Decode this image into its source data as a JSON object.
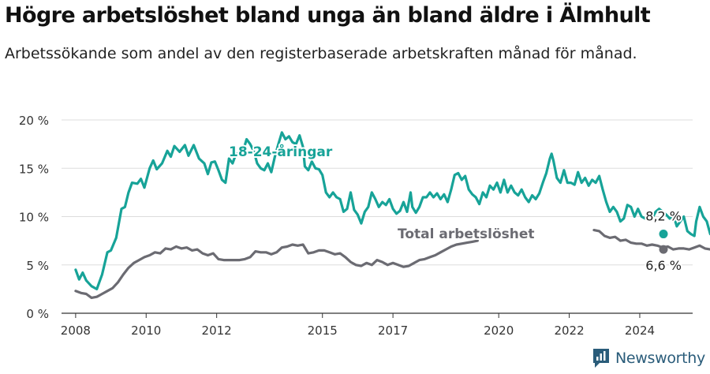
{
  "title": "Högre arbetslöshet bland unga än bland äldre i Älmhult",
  "subtitle": "Arbetssökande som andel av den registerbaserade arbetskraften månad för månad.",
  "brand": "Newsworthy",
  "colors": {
    "youth": "#17a398",
    "total": "#6b6b72",
    "grid": "#dddddd",
    "axis": "#333333"
  },
  "chart_data": {
    "type": "line",
    "ylabel": "",
    "xlabel": "",
    "ylim": [
      0,
      20
    ],
    "y_ticks": [
      0,
      5,
      10,
      15,
      20
    ],
    "y_tick_labels": [
      "0 %",
      "5 %",
      "10 %",
      "15 %",
      "20 %"
    ],
    "x_range": [
      2007.6,
      2025.5
    ],
    "x_ticks": [
      2008,
      2010,
      2012,
      2015,
      2017,
      2020,
      2022,
      2024
    ],
    "x_tick_labels": [
      "2008",
      "2010",
      "2012",
      "2015",
      "2017",
      "2020",
      "2022",
      "2024"
    ],
    "series": [
      {
        "name": "18-24-åringar",
        "label": "18-24-åringar",
        "end_label": "8,2 %",
        "points": [
          [
            2008.0,
            4.5
          ],
          [
            2008.1,
            3.5
          ],
          [
            2008.2,
            4.2
          ],
          [
            2008.3,
            3.4
          ],
          [
            2008.45,
            2.8
          ],
          [
            2008.6,
            2.5
          ],
          [
            2008.75,
            4.0
          ],
          [
            2008.9,
            6.3
          ],
          [
            2009.0,
            6.5
          ],
          [
            2009.15,
            7.8
          ],
          [
            2009.3,
            10.8
          ],
          [
            2009.4,
            11.0
          ],
          [
            2009.5,
            12.5
          ],
          [
            2009.6,
            13.5
          ],
          [
            2009.75,
            13.4
          ],
          [
            2009.85,
            13.9
          ],
          [
            2009.95,
            13.0
          ],
          [
            2010.1,
            15.0
          ],
          [
            2010.2,
            15.8
          ],
          [
            2010.3,
            14.9
          ],
          [
            2010.45,
            15.5
          ],
          [
            2010.6,
            16.8
          ],
          [
            2010.7,
            16.2
          ],
          [
            2010.8,
            17.3
          ],
          [
            2010.95,
            16.7
          ],
          [
            2011.1,
            17.4
          ],
          [
            2011.2,
            16.3
          ],
          [
            2011.35,
            17.4
          ],
          [
            2011.5,
            16.0
          ],
          [
            2011.65,
            15.5
          ],
          [
            2011.75,
            14.4
          ],
          [
            2011.85,
            15.6
          ],
          [
            2011.95,
            15.7
          ],
          [
            2012.05,
            14.8
          ],
          [
            2012.15,
            13.8
          ],
          [
            2012.25,
            13.5
          ],
          [
            2012.35,
            16.0
          ],
          [
            2012.45,
            15.5
          ],
          [
            2012.55,
            16.5
          ],
          [
            2012.65,
            16.5
          ],
          [
            2012.75,
            16.8
          ],
          [
            2012.85,
            18.0
          ],
          [
            2012.95,
            17.5
          ],
          [
            2013.05,
            16.8
          ],
          [
            2013.15,
            15.5
          ],
          [
            2013.25,
            15.0
          ],
          [
            2013.35,
            14.8
          ],
          [
            2013.45,
            15.5
          ],
          [
            2013.55,
            14.6
          ],
          [
            2013.65,
            16.2
          ],
          [
            2013.75,
            17.5
          ],
          [
            2013.85,
            18.7
          ],
          [
            2013.95,
            18.0
          ],
          [
            2014.05,
            18.3
          ],
          [
            2014.15,
            17.7
          ],
          [
            2014.25,
            17.5
          ],
          [
            2014.35,
            18.4
          ],
          [
            2014.45,
            17.2
          ],
          [
            2014.5,
            15.2
          ],
          [
            2014.6,
            14.8
          ],
          [
            2014.7,
            15.7
          ],
          [
            2014.8,
            15.0
          ],
          [
            2014.9,
            14.9
          ],
          [
            2015.0,
            14.3
          ],
          [
            2015.1,
            12.5
          ],
          [
            2015.2,
            12.0
          ],
          [
            2015.3,
            12.5
          ],
          [
            2015.4,
            12.0
          ],
          [
            2015.5,
            11.8
          ],
          [
            2015.6,
            10.5
          ],
          [
            2015.7,
            10.8
          ],
          [
            2015.8,
            12.5
          ],
          [
            2015.9,
            10.7
          ],
          [
            2016.0,
            10.2
          ],
          [
            2016.1,
            9.3
          ],
          [
            2016.2,
            10.5
          ],
          [
            2016.3,
            11.0
          ],
          [
            2016.4,
            12.5
          ],
          [
            2016.5,
            11.8
          ],
          [
            2016.6,
            11.0
          ],
          [
            2016.7,
            11.5
          ],
          [
            2016.8,
            11.2
          ],
          [
            2016.9,
            11.8
          ],
          [
            2017.0,
            10.8
          ],
          [
            2017.1,
            10.3
          ],
          [
            2017.2,
            10.6
          ],
          [
            2017.3,
            11.5
          ],
          [
            2017.4,
            10.5
          ],
          [
            2017.5,
            12.5
          ],
          [
            2017.55,
            11.0
          ],
          [
            2017.65,
            10.4
          ],
          [
            2017.75,
            11.0
          ],
          [
            2017.85,
            12.0
          ],
          [
            2017.95,
            12.0
          ],
          [
            2018.05,
            12.5
          ],
          [
            2018.15,
            12.0
          ],
          [
            2018.25,
            12.4
          ],
          [
            2018.35,
            11.8
          ],
          [
            2018.45,
            12.3
          ],
          [
            2018.55,
            11.5
          ],
          [
            2018.65,
            12.8
          ],
          [
            2018.75,
            14.3
          ],
          [
            2018.85,
            14.5
          ],
          [
            2018.95,
            13.8
          ],
          [
            2019.05,
            14.2
          ],
          [
            2019.15,
            12.8
          ],
          [
            2019.25,
            12.3
          ],
          [
            2019.35,
            12.0
          ],
          [
            2019.45,
            11.3
          ],
          [
            2019.55,
            12.5
          ],
          [
            2019.65,
            12.0
          ],
          [
            2019.75,
            13.2
          ],
          [
            2019.85,
            12.8
          ],
          [
            2019.95,
            13.5
          ],
          [
            2020.05,
            12.5
          ],
          [
            2020.15,
            13.8
          ],
          [
            2020.25,
            12.5
          ],
          [
            2020.35,
            13.2
          ],
          [
            2020.45,
            12.5
          ],
          [
            2020.55,
            12.2
          ],
          [
            2020.65,
            12.8
          ],
          [
            2020.75,
            12.0
          ],
          [
            2020.85,
            11.5
          ],
          [
            2020.95,
            12.2
          ],
          [
            2021.05,
            11.8
          ],
          [
            2021.15,
            12.4
          ],
          [
            2021.25,
            13.5
          ],
          [
            2021.35,
            14.5
          ],
          [
            2021.45,
            16.0
          ],
          [
            2021.5,
            16.5
          ],
          [
            2021.55,
            15.8
          ],
          [
            2021.65,
            14.0
          ],
          [
            2021.75,
            13.5
          ],
          [
            2021.85,
            14.8
          ],
          [
            2021.95,
            13.5
          ],
          [
            2022.05,
            13.5
          ],
          [
            2022.15,
            13.3
          ],
          [
            2022.25,
            14.6
          ],
          [
            2022.35,
            13.5
          ],
          [
            2022.45,
            14.0
          ],
          [
            2022.55,
            13.2
          ],
          [
            2022.65,
            13.8
          ],
          [
            2022.75,
            13.5
          ],
          [
            2022.85,
            14.2
          ],
          [
            2022.95,
            12.8
          ],
          [
            2023.05,
            11.5
          ],
          [
            2023.15,
            10.5
          ],
          [
            2023.25,
            11.0
          ],
          [
            2023.35,
            10.5
          ],
          [
            2023.45,
            9.5
          ],
          [
            2023.55,
            9.8
          ],
          [
            2023.65,
            11.2
          ],
          [
            2023.75,
            11.0
          ],
          [
            2023.85,
            10.0
          ],
          [
            2023.95,
            10.8
          ],
          [
            2024.05,
            10.0
          ],
          [
            2024.15,
            9.8
          ],
          [
            2024.25,
            10.2
          ],
          [
            2024.35,
            9.8
          ],
          [
            2024.45,
            10.5
          ],
          [
            2024.55,
            10.8
          ],
          [
            2024.65,
            10.5
          ],
          [
            2024.75,
            10.2
          ],
          [
            2024.85,
            9.8
          ],
          [
            2024.95,
            10.2
          ],
          [
            2025.05,
            9.0
          ],
          [
            2025.15,
            9.5
          ],
          [
            2025.25,
            10.0
          ],
          [
            2025.35,
            8.5
          ],
          [
            2025.45,
            8.2
          ],
          [
            2025.55,
            8.0
          ],
          [
            2025.6,
            9.5
          ],
          [
            2025.7,
            11.0
          ],
          [
            2025.8,
            10.0
          ],
          [
            2025.9,
            9.5
          ],
          [
            2026.0,
            8.2
          ]
        ]
      },
      {
        "name": "Total arbetslöshet",
        "label": "Total arbetslöshet",
        "end_label": "6,6 %",
        "points": [
          [
            2008.0,
            2.3
          ],
          [
            2008.15,
            2.1
          ],
          [
            2008.3,
            2.0
          ],
          [
            2008.45,
            1.6
          ],
          [
            2008.6,
            1.7
          ],
          [
            2008.75,
            2.0
          ],
          [
            2008.9,
            2.3
          ],
          [
            2009.05,
            2.6
          ],
          [
            2009.2,
            3.2
          ],
          [
            2009.35,
            4.0
          ],
          [
            2009.5,
            4.7
          ],
          [
            2009.65,
            5.2
          ],
          [
            2009.8,
            5.5
          ],
          [
            2009.95,
            5.8
          ],
          [
            2010.1,
            6.0
          ],
          [
            2010.25,
            6.3
          ],
          [
            2010.4,
            6.2
          ],
          [
            2010.55,
            6.7
          ],
          [
            2010.7,
            6.6
          ],
          [
            2010.85,
            6.9
          ],
          [
            2011.0,
            6.7
          ],
          [
            2011.15,
            6.8
          ],
          [
            2011.3,
            6.5
          ],
          [
            2011.45,
            6.6
          ],
          [
            2011.6,
            6.2
          ],
          [
            2011.75,
            6.0
          ],
          [
            2011.9,
            6.2
          ],
          [
            2012.05,
            5.6
          ],
          [
            2012.2,
            5.5
          ],
          [
            2012.35,
            5.5
          ],
          [
            2012.5,
            5.5
          ],
          [
            2012.65,
            5.5
          ],
          [
            2012.8,
            5.6
          ],
          [
            2012.95,
            5.8
          ],
          [
            2013.1,
            6.4
          ],
          [
            2013.25,
            6.3
          ],
          [
            2013.4,
            6.3
          ],
          [
            2013.55,
            6.1
          ],
          [
            2013.7,
            6.3
          ],
          [
            2013.85,
            6.8
          ],
          [
            2014.0,
            6.9
          ],
          [
            2014.15,
            7.1
          ],
          [
            2014.3,
            7.0
          ],
          [
            2014.45,
            7.1
          ],
          [
            2014.6,
            6.2
          ],
          [
            2014.75,
            6.3
          ],
          [
            2014.9,
            6.5
          ],
          [
            2015.05,
            6.5
          ],
          [
            2015.2,
            6.3
          ],
          [
            2015.35,
            6.1
          ],
          [
            2015.5,
            6.2
          ],
          [
            2015.65,
            5.8
          ],
          [
            2015.8,
            5.3
          ],
          [
            2015.95,
            5.0
          ],
          [
            2016.1,
            4.9
          ],
          [
            2016.25,
            5.2
          ],
          [
            2016.4,
            5.0
          ],
          [
            2016.55,
            5.5
          ],
          [
            2016.7,
            5.3
          ],
          [
            2016.85,
            5.0
          ],
          [
            2017.0,
            5.2
          ],
          [
            2017.15,
            5.0
          ],
          [
            2017.3,
            4.8
          ],
          [
            2017.45,
            4.9
          ],
          [
            2017.6,
            5.2
          ],
          [
            2017.75,
            5.5
          ],
          [
            2017.9,
            5.6
          ],
          [
            2018.05,
            5.8
          ],
          [
            2018.2,
            6.0
          ],
          [
            2018.35,
            6.3
          ],
          [
            2018.5,
            6.6
          ],
          [
            2018.65,
            6.9
          ],
          [
            2018.8,
            7.1
          ],
          [
            2018.95,
            7.2
          ],
          [
            2019.1,
            7.3
          ],
          [
            2019.25,
            7.4
          ],
          [
            2019.4,
            7.5
          ]
        ]
      },
      {
        "name": "Total arbetslöshet (end)",
        "points": [
          [
            2022.7,
            8.6
          ],
          [
            2022.85,
            8.5
          ],
          [
            2023.0,
            8.0
          ],
          [
            2023.15,
            7.8
          ],
          [
            2023.3,
            7.9
          ],
          [
            2023.45,
            7.5
          ],
          [
            2023.6,
            7.6
          ],
          [
            2023.75,
            7.3
          ],
          [
            2023.9,
            7.2
          ],
          [
            2024.05,
            7.2
          ],
          [
            2024.2,
            7.0
          ],
          [
            2024.35,
            7.1
          ],
          [
            2024.5,
            7.0
          ],
          [
            2024.65,
            6.8
          ],
          [
            2024.8,
            6.9
          ],
          [
            2024.95,
            6.6
          ],
          [
            2025.1,
            6.7
          ],
          [
            2025.25,
            6.7
          ],
          [
            2025.4,
            6.6
          ],
          [
            2025.55,
            6.8
          ],
          [
            2025.7,
            7.0
          ],
          [
            2025.85,
            6.7
          ],
          [
            2026.0,
            6.6
          ]
        ]
      }
    ]
  }
}
